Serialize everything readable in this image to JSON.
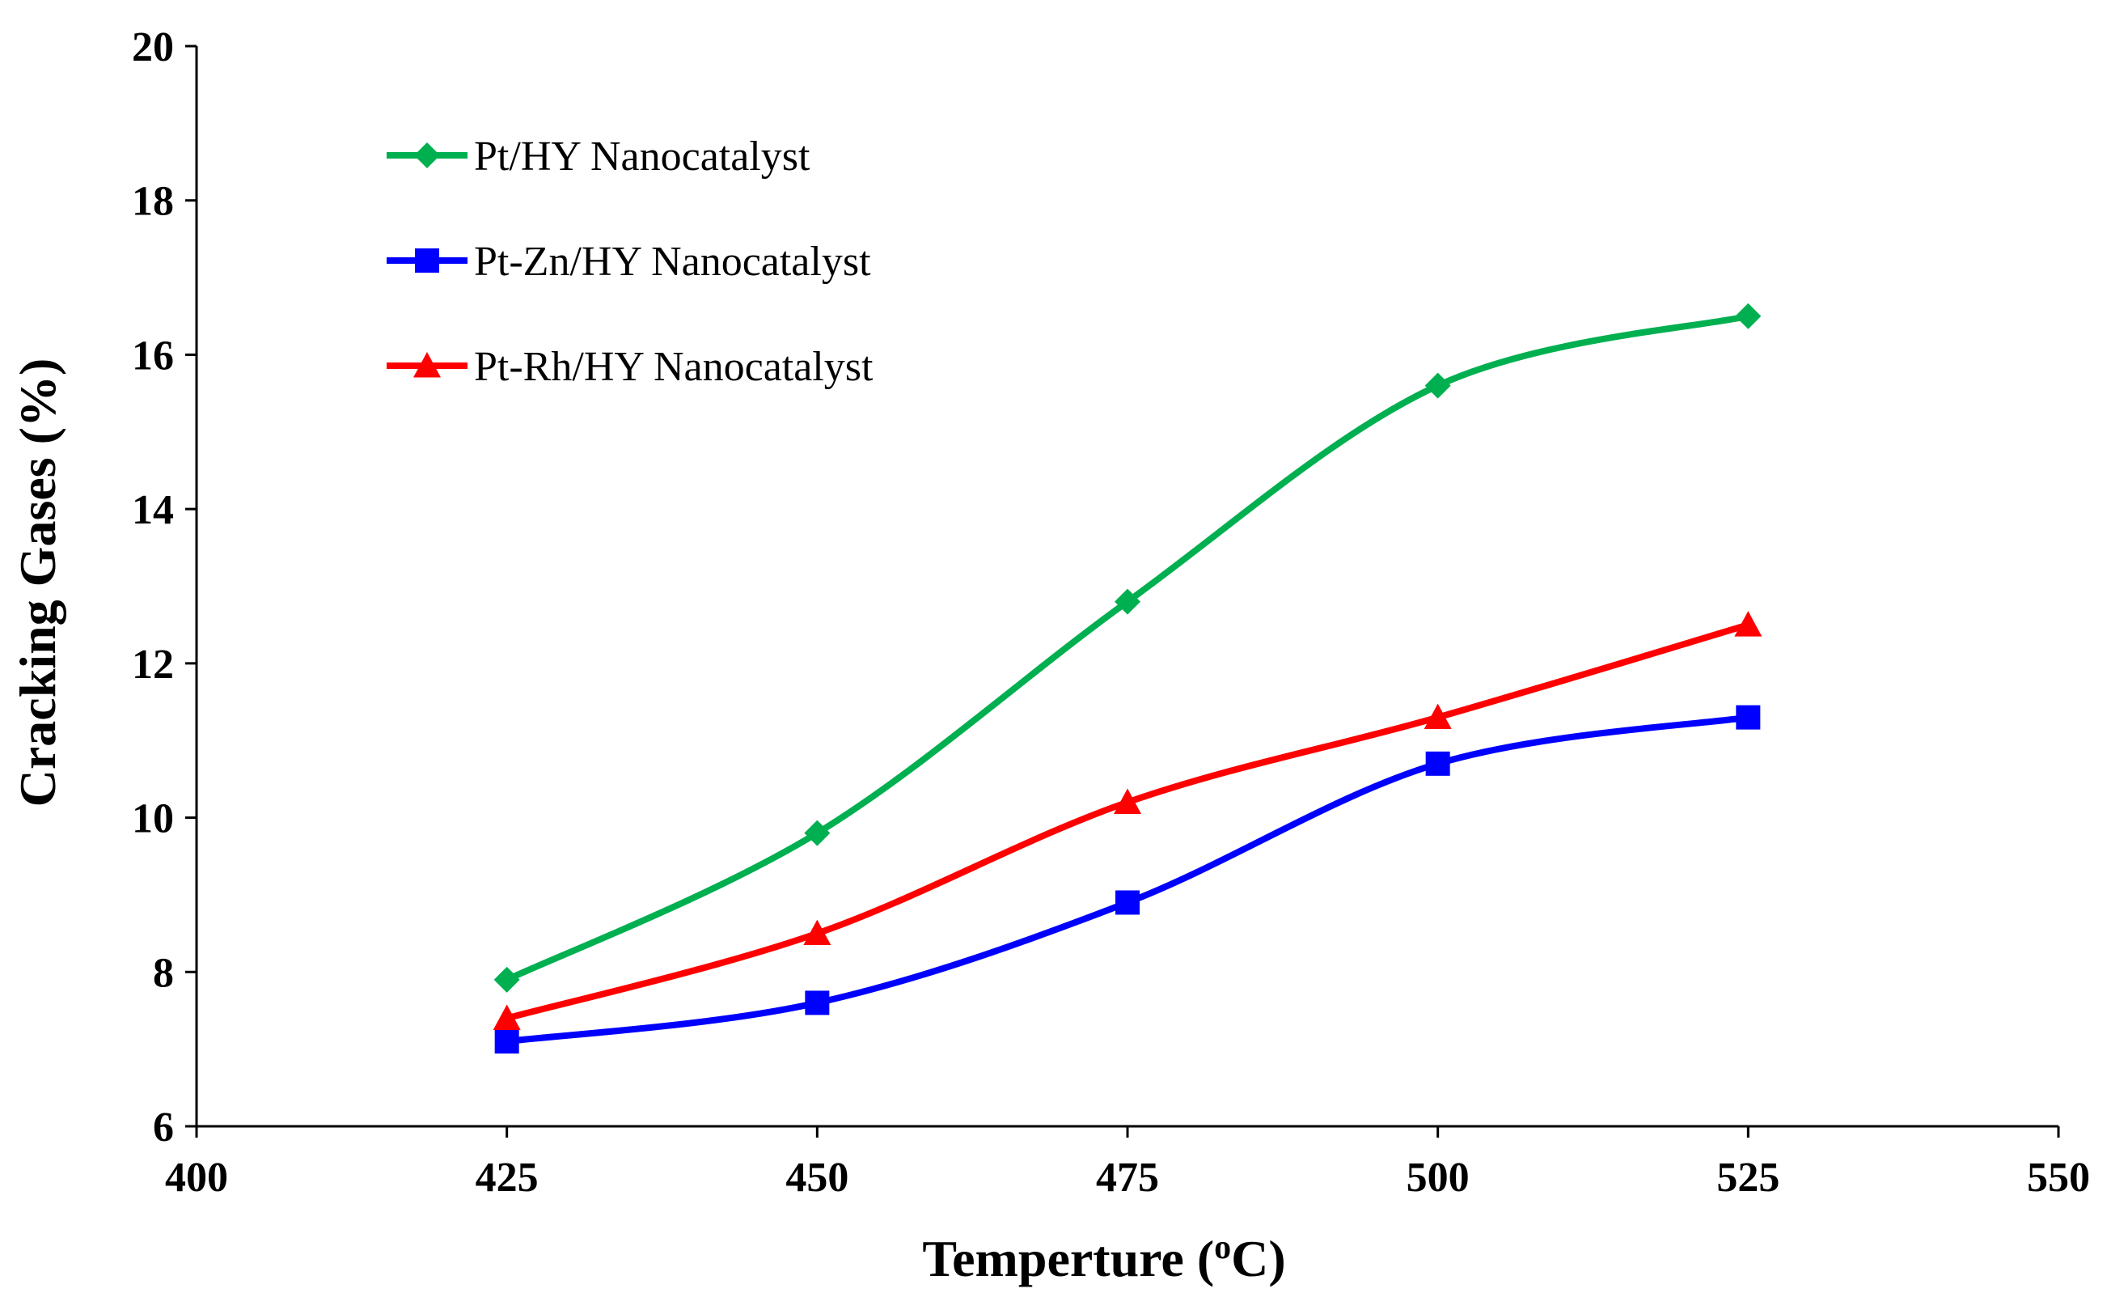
{
  "chart_data": {
    "type": "line",
    "title": "",
    "xlabel_main": "Temperture (",
    "xlabel_sup": "o",
    "xlabel_unit": "C)",
    "ylabel": "Cracking Gases (%)",
    "xlim": [
      400,
      550
    ],
    "ylim": [
      6,
      20
    ],
    "xticks": [
      400,
      425,
      450,
      475,
      500,
      525,
      550
    ],
    "yticks": [
      6,
      8,
      10,
      12,
      14,
      16,
      18,
      20
    ],
    "grid": false,
    "legend_position": "top-left",
    "x": [
      425,
      450,
      475,
      500,
      525
    ],
    "series": [
      {
        "name": "Pt/HY Nanocatalyst",
        "marker": "diamond",
        "color": "#00B050",
        "values": [
          7.9,
          9.8,
          12.8,
          15.6,
          16.5
        ]
      },
      {
        "name": "Pt-Zn/HY Nanocatalyst",
        "marker": "square",
        "color": "#0000FF",
        "values": [
          7.1,
          7.6,
          8.9,
          10.7,
          11.3
        ]
      },
      {
        "name": "Pt-Rh/HY Nanocatalyst",
        "marker": "triangle",
        "color": "#FF0000",
        "values": [
          7.4,
          8.5,
          10.2,
          11.3,
          12.5
        ]
      }
    ]
  }
}
